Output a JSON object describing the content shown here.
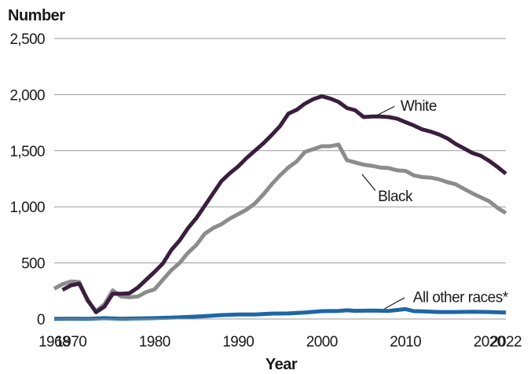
{
  "chart_data": {
    "type": "line",
    "ylabel": "Number",
    "xlabel": "Year",
    "xlim": [
      1968,
      2022
    ],
    "ylim": [
      0,
      2500
    ],
    "grid": true,
    "x_ticks": [
      {
        "value": 1968,
        "label": "1968"
      },
      {
        "value": 1970,
        "label": "1970"
      },
      {
        "value": 1980,
        "label": "1980"
      },
      {
        "value": 1990,
        "label": "1990"
      },
      {
        "value": 2000,
        "label": "2000"
      },
      {
        "value": 2010,
        "label": "2010"
      },
      {
        "value": 2020,
        "label": "2020"
      },
      {
        "value": 2022,
        "label": "2022"
      }
    ],
    "y_ticks": [
      {
        "value": 0,
        "label": "0"
      },
      {
        "value": 500,
        "label": "500"
      },
      {
        "value": 1000,
        "label": "1,000"
      },
      {
        "value": 1500,
        "label": "1,500"
      },
      {
        "value": 2000,
        "label": "2,000"
      },
      {
        "value": 2500,
        "label": "2,500"
      }
    ],
    "series": [
      {
        "name": "Black",
        "color": "#8c8c8c",
        "label_year": 2006.7,
        "label_value": 1100,
        "x": [
          1968,
          1969,
          1970,
          1971,
          1972,
          1973,
          1974,
          1975,
          1976,
          1977,
          1978,
          1979,
          1980,
          1981,
          1982,
          1983,
          1984,
          1985,
          1986,
          1987,
          1988,
          1989,
          1990,
          1991,
          1992,
          1993,
          1994,
          1995,
          1996,
          1997,
          1998,
          1999,
          2000,
          2001,
          2002,
          2003,
          2004,
          2005,
          2006,
          2007,
          2008,
          2009,
          2010,
          2011,
          2012,
          2013,
          2014,
          2015,
          2016,
          2017,
          2018,
          2019,
          2020,
          2021,
          2022
        ],
        "values": [
          270,
          310,
          335,
          330,
          160,
          70,
          130,
          255,
          200,
          195,
          200,
          240,
          265,
          350,
          435,
          500,
          590,
          660,
          760,
          810,
          845,
          895,
          935,
          975,
          1030,
          1110,
          1200,
          1280,
          1350,
          1405,
          1490,
          1515,
          1540,
          1540,
          1555,
          1415,
          1395,
          1375,
          1365,
          1350,
          1345,
          1325,
          1320,
          1280,
          1265,
          1260,
          1245,
          1220,
          1200,
          1160,
          1120,
          1085,
          1050,
          990,
          945
        ]
      },
      {
        "name": "White",
        "color": "#3a1e3e",
        "label_year": 2009.4,
        "label_value": 1905,
        "x": [
          1969,
          1970,
          1971,
          1972,
          1973,
          1974,
          1975,
          1976,
          1977,
          1978,
          1979,
          1980,
          1981,
          1982,
          1983,
          1984,
          1985,
          1986,
          1987,
          1988,
          1989,
          1990,
          1991,
          1992,
          1993,
          1994,
          1995,
          1996,
          1997,
          1998,
          1999,
          2000,
          2001,
          2002,
          2003,
          2004,
          2005,
          2006,
          2007,
          2008,
          2009,
          2010,
          2011,
          2012,
          2013,
          2014,
          2015,
          2016,
          2017,
          2018,
          2019,
          2020,
          2021,
          2022
        ],
        "values": [
          260,
          300,
          315,
          170,
          60,
          110,
          225,
          225,
          230,
          280,
          350,
          420,
          495,
          615,
          700,
          810,
          900,
          1010,
          1120,
          1230,
          1300,
          1360,
          1435,
          1500,
          1565,
          1640,
          1720,
          1830,
          1865,
          1920,
          1960,
          1985,
          1965,
          1935,
          1880,
          1860,
          1800,
          1805,
          1805,
          1800,
          1785,
          1755,
          1725,
          1690,
          1670,
          1645,
          1610,
          1560,
          1520,
          1480,
          1455,
          1410,
          1355,
          1295
        ]
      },
      {
        "name": "All other races*",
        "color": "#1e66a6",
        "label_year": 2010.9,
        "label_value": 200,
        "x": [
          1968,
          1970,
          1972,
          1974,
          1976,
          1978,
          1980,
          1982,
          1984,
          1986,
          1988,
          1990,
          1992,
          1994,
          1996,
          1998,
          2000,
          2002,
          2003,
          2004,
          2006,
          2008,
          2010,
          2011,
          2012,
          2014,
          2016,
          2018,
          2020,
          2022
        ],
        "values": [
          2,
          3,
          2,
          8,
          3,
          5,
          8,
          12,
          18,
          25,
          35,
          40,
          40,
          48,
          50,
          58,
          70,
          72,
          78,
          73,
          75,
          72,
          88,
          70,
          68,
          62,
          62,
          65,
          62,
          58
        ]
      }
    ]
  }
}
